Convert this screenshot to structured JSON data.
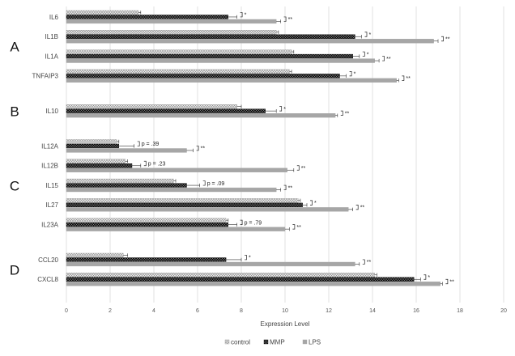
{
  "chart_data": {
    "type": "bar",
    "orientation": "horizontal",
    "xlabel": "Expression Level",
    "xlim": [
      0,
      20
    ],
    "xticks": [
      "0",
      "2",
      "4",
      "6",
      "8",
      "10",
      "12",
      "14",
      "16",
      "18",
      "20"
    ],
    "grid": true,
    "legend_position": "bottom",
    "series_names": [
      "control",
      "MMP",
      "LPS"
    ],
    "series_colors": [
      "#d9d9d9",
      "#1f1f1f",
      "#a6a6a6"
    ],
    "groups": [
      {
        "label": "A",
        "categories": [
          {
            "name": "IL6",
            "values": [
              3.3,
              7.4,
              9.6
            ],
            "errors": [
              0.1,
              0.4,
              0.2
            ],
            "annotations": [
              {
                "text": "*",
                "level": 1
              },
              {
                "text": "**",
                "level": 2
              }
            ]
          },
          {
            "name": "IL1B",
            "values": [
              9.6,
              13.2,
              16.8
            ],
            "errors": [
              0.1,
              0.3,
              0.2
            ],
            "annotations": [
              {
                "text": "*",
                "level": 1
              },
              {
                "text": "**",
                "level": 2
              }
            ]
          },
          {
            "name": "IL1A",
            "values": [
              10.3,
              13.1,
              14.1
            ],
            "errors": [
              0.1,
              0.3,
              0.2
            ],
            "annotations": [
              {
                "text": "*",
                "level": 1
              },
              {
                "text": "**",
                "level": 2
              }
            ]
          },
          {
            "name": "TNFAIP3",
            "values": [
              10.2,
              12.5,
              15.1
            ],
            "errors": [
              0.1,
              0.3,
              0.1
            ],
            "annotations": [
              {
                "text": "*",
                "level": 1
              },
              {
                "text": "**",
                "level": 2
              }
            ]
          }
        ]
      },
      {
        "label": "B",
        "categories": [
          {
            "name": "IL10",
            "values": [
              7.8,
              9.1,
              12.3
            ],
            "errors": [
              0.2,
              0.5,
              0.1
            ],
            "annotations": [
              {
                "text": "*",
                "level": 1
              },
              {
                "text": "**",
                "level": 2
              }
            ]
          }
        ]
      },
      {
        "label": "C",
        "categories": [
          {
            "name": "IL12A",
            "values": [
              2.3,
              2.4,
              5.5
            ],
            "errors": [
              0.1,
              0.7,
              0.3
            ],
            "annotations": [
              {
                "text": "p = .39",
                "level": 1
              },
              {
                "text": "**",
                "level": 2
              }
            ]
          },
          {
            "name": "IL12B",
            "values": [
              2.7,
              3.0,
              10.1
            ],
            "errors": [
              0.1,
              0.4,
              0.3
            ],
            "annotations": [
              {
                "text": "p = .23",
                "level": 1
              },
              {
                "text": "**",
                "level": 2
              }
            ]
          },
          {
            "name": "IL15",
            "values": [
              4.9,
              5.5,
              9.6
            ],
            "errors": [
              0.1,
              0.6,
              0.2
            ],
            "annotations": [
              {
                "text": "p = .09",
                "level": 1
              },
              {
                "text": "**",
                "level": 2
              }
            ]
          },
          {
            "name": "IL27",
            "values": [
              10.6,
              10.8,
              12.9
            ],
            "errors": [
              0.1,
              0.2,
              0.2
            ],
            "annotations": [
              {
                "text": "*",
                "level": 1
              },
              {
                "text": "**",
                "level": 2
              }
            ]
          },
          {
            "name": "IL23A",
            "values": [
              7.3,
              7.4,
              10.0
            ],
            "errors": [
              0.1,
              0.4,
              0.2
            ],
            "annotations": [
              {
                "text": "p = .79",
                "level": 1
              },
              {
                "text": "**",
                "level": 2
              }
            ]
          }
        ]
      },
      {
        "label": "D",
        "categories": [
          {
            "name": "CCL20",
            "values": [
              2.6,
              7.3,
              13.2
            ],
            "errors": [
              0.2,
              0.7,
              0.2
            ],
            "annotations": [
              {
                "text": "*",
                "level": 1
              },
              {
                "text": "**",
                "level": 2
              }
            ]
          },
          {
            "name": "CXCL8",
            "values": [
              14.1,
              15.9,
              17.1
            ],
            "errors": [
              0.1,
              0.3,
              0.1
            ],
            "annotations": [
              {
                "text": "*",
                "level": 1
              },
              {
                "text": "**",
                "level": 2
              }
            ]
          }
        ]
      }
    ]
  }
}
